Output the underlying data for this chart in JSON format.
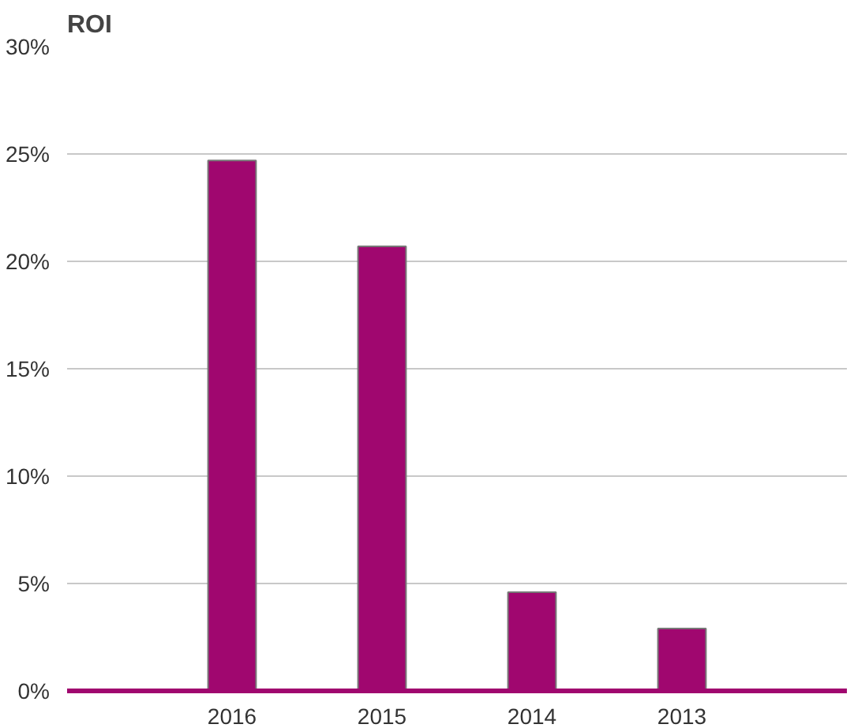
{
  "chart_data": {
    "type": "bar",
    "title": "ROI",
    "categories": [
      "2016",
      "2015",
      "2014",
      "2013"
    ],
    "values": [
      24.7,
      20.7,
      4.6,
      2.9
    ],
    "color": "#a0076f",
    "ylim": [
      0,
      30
    ],
    "yticks": [
      {
        "value": 0,
        "label": "0%"
      },
      {
        "value": 5,
        "label": "5%"
      },
      {
        "value": 10,
        "label": "10%"
      },
      {
        "value": 15,
        "label": "15%"
      },
      {
        "value": 20,
        "label": "20%"
      },
      {
        "value": 25,
        "label": "25%"
      },
      {
        "value": 30,
        "label": "30%"
      }
    ],
    "grid": "y"
  }
}
